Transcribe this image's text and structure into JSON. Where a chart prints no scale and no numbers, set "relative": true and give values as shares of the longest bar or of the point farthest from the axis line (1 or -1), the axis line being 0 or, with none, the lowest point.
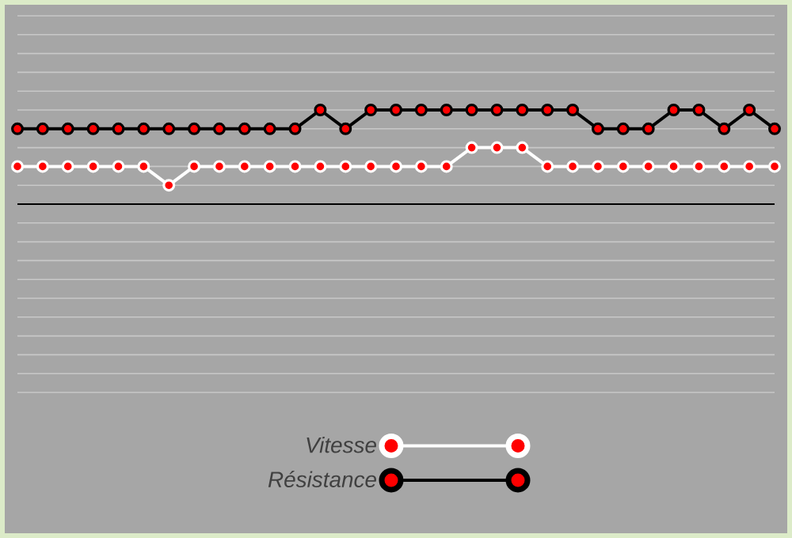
{
  "chart_data": {
    "type": "line",
    "relative": true,
    "categories": [
      null,
      null,
      null,
      null,
      null,
      null,
      null,
      null,
      null,
      null,
      null,
      null,
      null,
      null,
      null,
      null,
      null,
      null,
      null,
      null,
      null,
      null,
      null,
      null,
      null,
      null,
      null,
      null,
      null,
      null,
      null
    ],
    "series": [
      {
        "name": "Vitesse",
        "color": "#ffffff",
        "values": [
          0.4,
          0.4,
          0.4,
          0.4,
          0.4,
          0.4,
          0.2,
          0.4,
          0.4,
          0.4,
          0.4,
          0.4,
          0.4,
          0.4,
          0.4,
          0.4,
          0.4,
          0.4,
          0.6,
          0.6,
          0.6,
          0.4,
          0.4,
          0.4,
          0.4,
          0.4,
          0.4,
          0.4,
          0.4,
          0.4,
          0.4
        ]
      },
      {
        "name": "Résistance",
        "color": "#000000",
        "values": [
          0.8,
          0.8,
          0.8,
          0.8,
          0.8,
          0.8,
          0.8,
          0.8,
          0.8,
          0.8,
          0.8,
          0.8,
          1,
          0.8,
          1,
          1,
          1,
          1,
          1,
          1,
          1,
          1,
          1,
          0.8,
          0.8,
          0.8,
          1,
          1,
          0.8,
          1,
          0.8
        ]
      }
    ],
    "grid": "y",
    "legend": "bottom",
    "marker": "circle",
    "line_style": "solid"
  }
}
